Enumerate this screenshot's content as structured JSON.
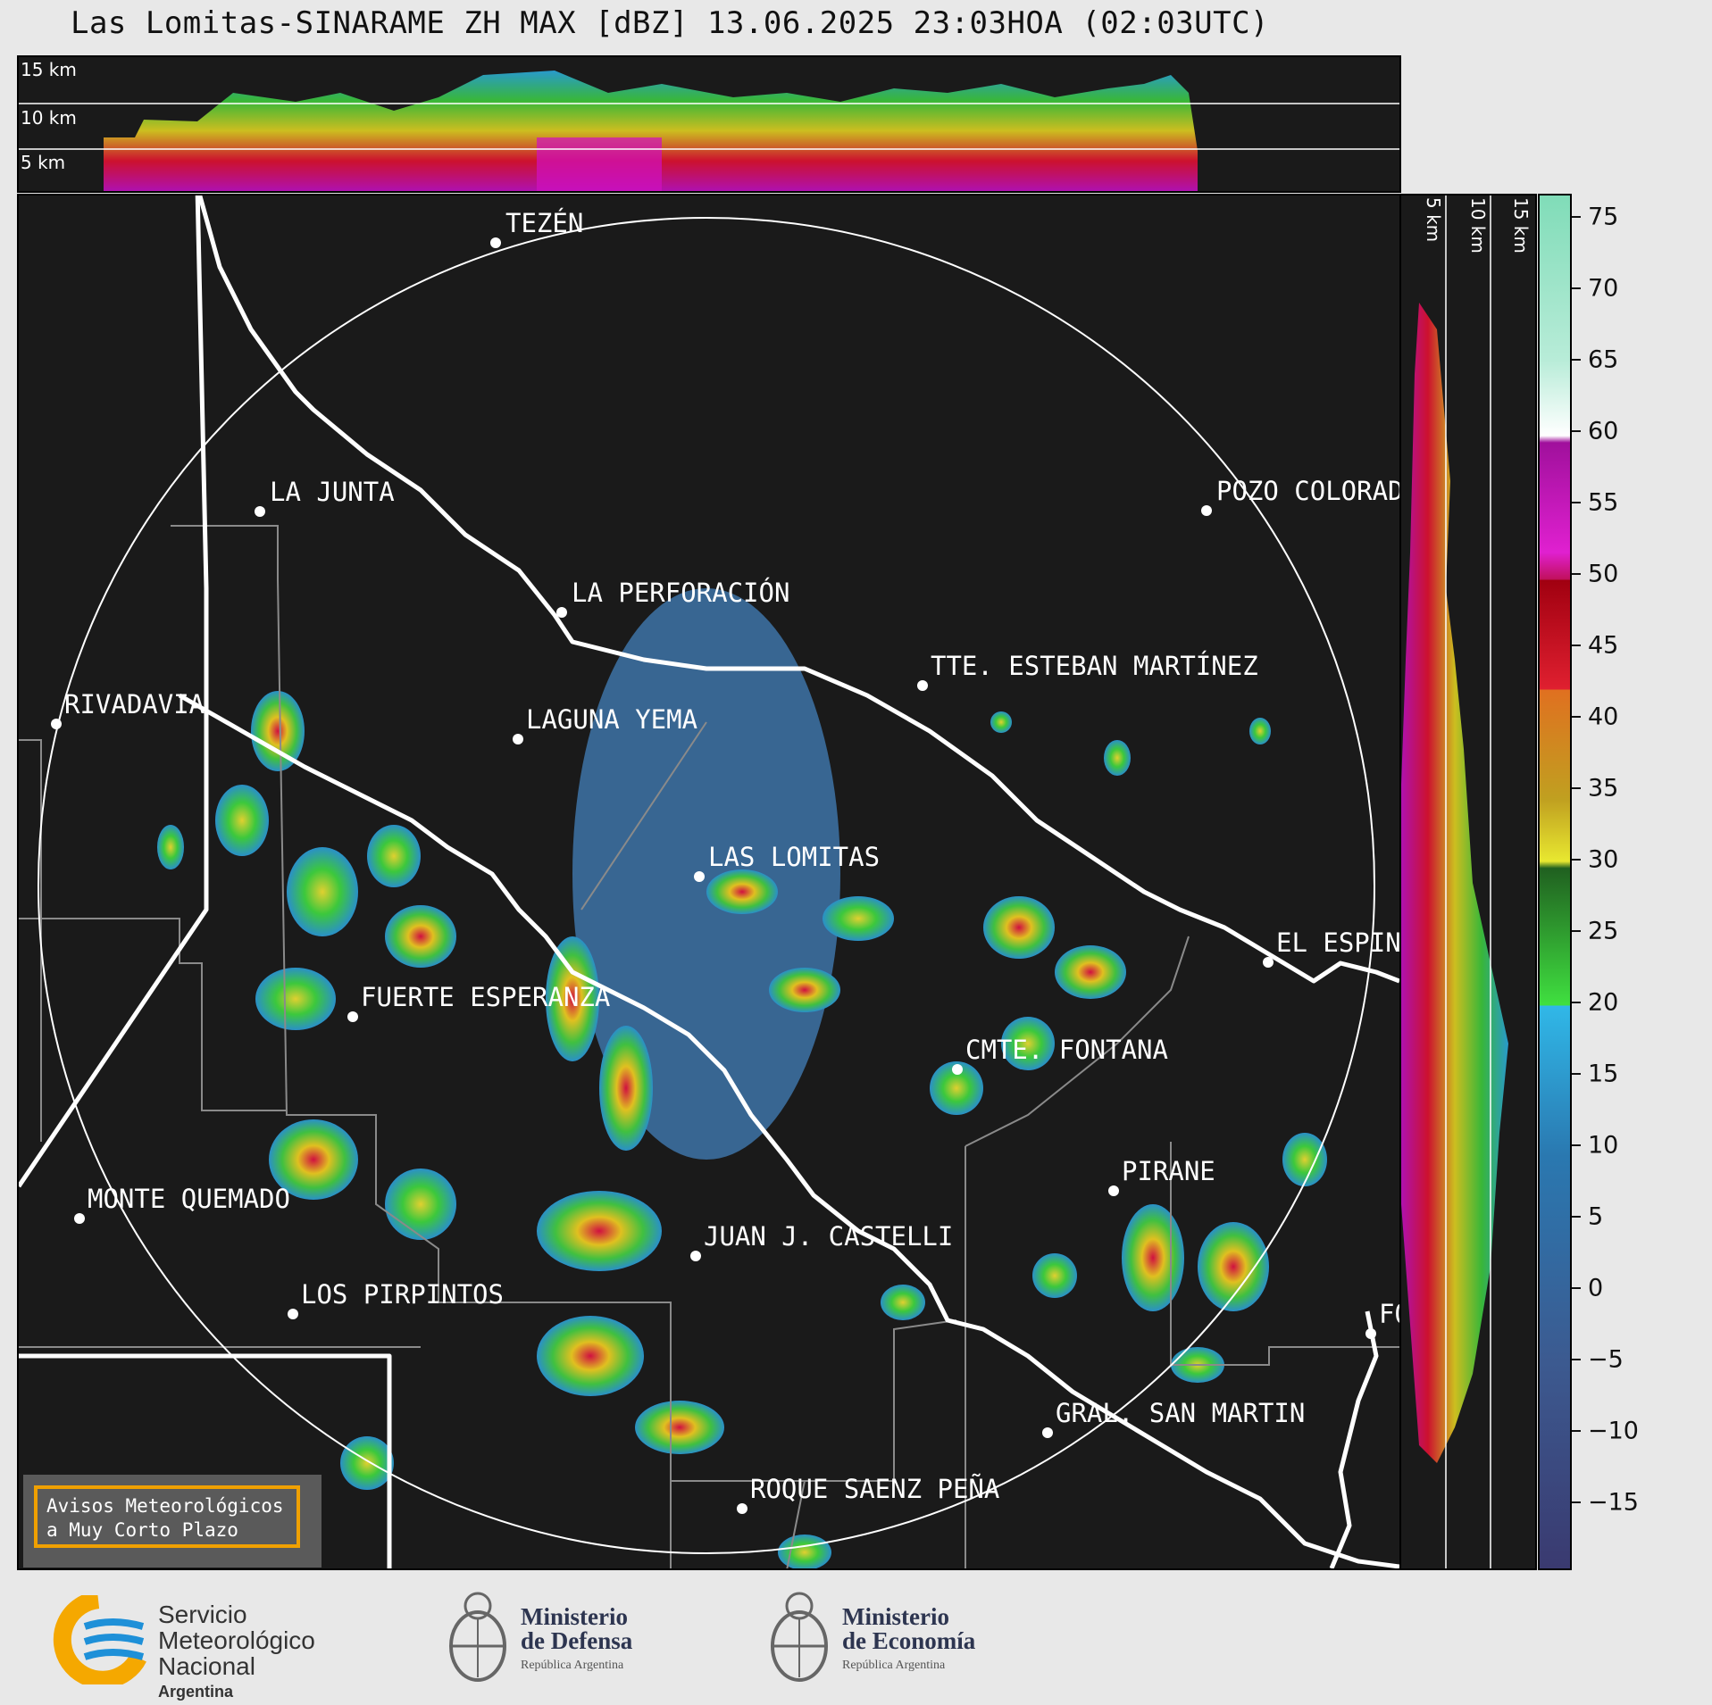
{
  "title": "Las Lomitas-SINARAME ZH MAX [dBZ] 13.06.2025 23:03HOA (02:03UTC)",
  "top_cross_section": {
    "height_labels": [
      "15 km",
      "10 km",
      "5 km"
    ]
  },
  "right_cross_section": {
    "height_labels": [
      "5 km",
      "10 km",
      "15 km"
    ]
  },
  "colorbar": {
    "unit": "dBZ",
    "ticks": [
      "75",
      "70",
      "65",
      "60",
      "55",
      "50",
      "45",
      "40",
      "35",
      "30",
      "25",
      "20",
      "15",
      "10",
      "5",
      "0",
      "−5",
      "−10",
      "−15"
    ],
    "range": [
      -20,
      77
    ]
  },
  "places": [
    {
      "name": "TEZÉN"
    },
    {
      "name": "LA JUNTA"
    },
    {
      "name": "POZO COLORAD"
    },
    {
      "name": "LA PERFORACIÓN"
    },
    {
      "name": "TTE. ESTEBAN MARTÍNEZ"
    },
    {
      "name": "RIVADAVIA"
    },
    {
      "name": "LAGUNA YEMA"
    },
    {
      "name": "LAS LOMITAS"
    },
    {
      "name": "EL ESPIN"
    },
    {
      "name": "FUERTE ESPERANZA"
    },
    {
      "name": "CMTE. FONTANA"
    },
    {
      "name": "PIRANE"
    },
    {
      "name": "MONTE QUEMADO"
    },
    {
      "name": "JUAN J. CASTELLI"
    },
    {
      "name": "LOS PIRPINTOS"
    },
    {
      "name": "GRAL. SAN MARTIN"
    },
    {
      "name": "ROQUE SAENZ PEÑA"
    },
    {
      "name": "FO"
    }
  ],
  "notice": {
    "line1": "Avisos Meteorológicos",
    "line2": "a Muy Corto Plazo"
  },
  "footer": {
    "smn": {
      "line1": "Servicio",
      "line2": "Meteorológico",
      "line3": "Nacional",
      "line4": "Argentina"
    },
    "defensa": {
      "line1": "Ministerio",
      "line2": "de Defensa",
      "line3": "República Argentina"
    },
    "economia": {
      "line1": "Ministerio",
      "line2": "de Economía",
      "line3": "República Argentina"
    }
  },
  "colors": {
    "background": "#1a1a1a",
    "range_ring": "#ffffff",
    "accent": "#f0a000",
    "smn_blue": "#1e90d8",
    "smn_yellow": "#f5a800"
  }
}
